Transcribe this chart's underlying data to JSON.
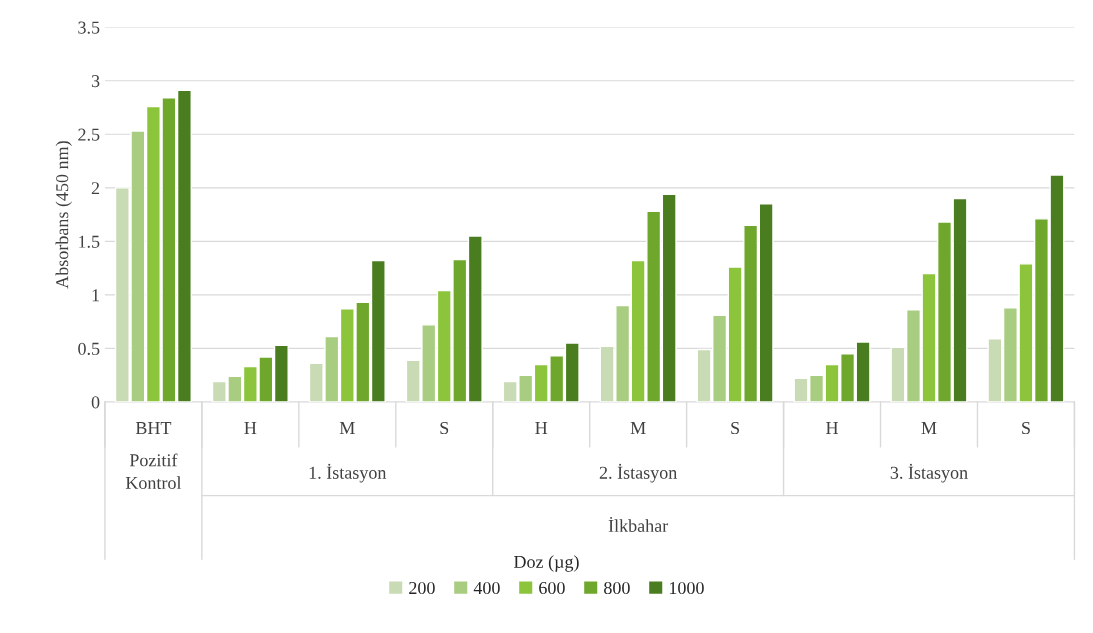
{
  "chart_data": {
    "type": "bar",
    "ylabel": "Absorbans (450 nm)",
    "legend_title": "Doz (µg)",
    "categories": [
      "BHT",
      "H",
      "M",
      "S",
      "H",
      "M",
      "S",
      "H",
      "M",
      "S"
    ],
    "series": [
      {
        "name": "200",
        "color": "#c9dbb4",
        "values": [
          2.0,
          0.19,
          0.36,
          0.39,
          0.19,
          0.52,
          0.49,
          0.22,
          0.51,
          0.59
        ]
      },
      {
        "name": "400",
        "color": "#a8cc80",
        "values": [
          2.53,
          0.24,
          0.61,
          0.72,
          0.25,
          0.9,
          0.81,
          0.25,
          0.86,
          0.88
        ]
      },
      {
        "name": "600",
        "color": "#8cc43c",
        "values": [
          2.76,
          0.33,
          0.87,
          1.04,
          0.35,
          1.32,
          1.26,
          0.35,
          1.2,
          1.29
        ]
      },
      {
        "name": "800",
        "color": "#6ea72c",
        "values": [
          2.84,
          0.42,
          0.93,
          1.33,
          0.43,
          1.78,
          1.65,
          0.45,
          1.68,
          1.71
        ]
      },
      {
        "name": "1000",
        "color": "#4a7d1f",
        "values": [
          2.91,
          0.53,
          1.32,
          1.55,
          0.55,
          1.94,
          1.85,
          0.56,
          1.9,
          2.12
        ]
      }
    ],
    "ylim": [
      0,
      3.5
    ],
    "yticks": [
      0,
      0.5,
      1,
      1.5,
      2,
      2.5,
      3,
      3.5
    ],
    "grid": "y",
    "legend": "bottom",
    "annotations": [
      "Pozitif Kontrol",
      "1. İstasyon",
      "2. İstasyon",
      "3. İstasyon",
      "İlkbahar"
    ]
  }
}
